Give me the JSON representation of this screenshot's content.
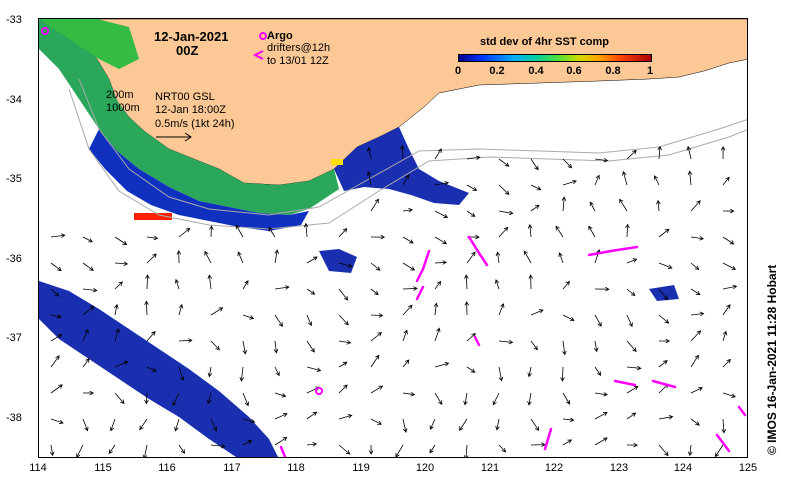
{
  "map": {
    "date_title": "12-Jan-2021",
    "time_title": "00Z",
    "argo_label": "Argo",
    "drifters_label": "drifters@12h",
    "drifters_range": "to 13/01 12Z",
    "isobath_200": "200m",
    "isobath_1000": "1000m",
    "current_source": "NRT00 GSL",
    "current_time": "12-Jan 18:00Z",
    "scale_label": "0.5m/s (1kt 24h)",
    "colorbar_title": "std dev of 4hr SST comp",
    "colorbar_ticks": [
      "0",
      "0.2",
      "0.4",
      "0.6",
      "0.8",
      "1"
    ],
    "y_ticks": [
      "-33",
      "-34",
      "-35",
      "-36",
      "-37",
      "-38"
    ],
    "x_ticks": [
      "114",
      "115",
      "116",
      "117",
      "118",
      "119",
      "120",
      "121",
      "122",
      "123",
      "124",
      "125"
    ],
    "credit": "© IMOS 16-Jan-2021 11:28 Hobart",
    "colors": {
      "land": "#fbc896",
      "argo": "#ff00ff",
      "drifter": "#ff00ff",
      "high_variance": "#ff0000",
      "low_variance": "#00008b"
    }
  }
}
